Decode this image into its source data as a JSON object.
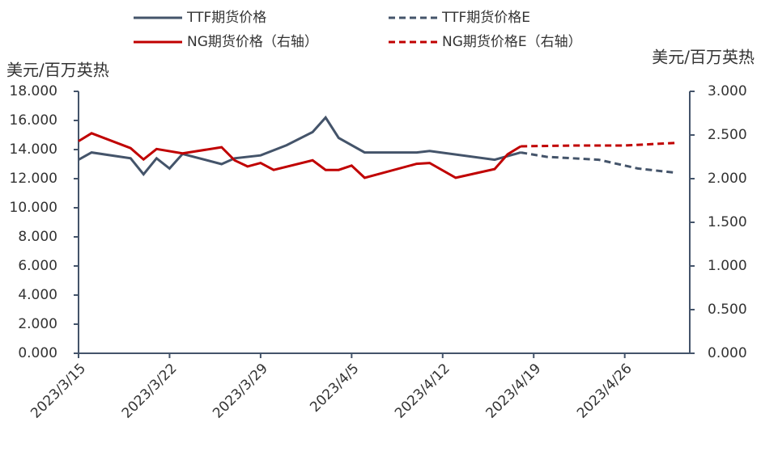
{
  "chart_data": {
    "type": "line",
    "y_label": "美元/百万英热",
    "y2_label": "美元/百万英热",
    "xlim": [
      "2023/3/15",
      "2023/5/1"
    ],
    "xticks": [
      "2023/3/15",
      "2023/3/22",
      "2023/3/29",
      "2023/4/5",
      "2023/4/12",
      "2023/4/19",
      "2023/4/26"
    ],
    "ylim": [
      0,
      18
    ],
    "yticks": [
      {
        "value": 0,
        "label": "0.000"
      },
      {
        "value": 2,
        "label": "2.000"
      },
      {
        "value": 4,
        "label": "4.000"
      },
      {
        "value": 6,
        "label": "6.000"
      },
      {
        "value": 8,
        "label": "8.000"
      },
      {
        "value": 10,
        "label": "10.000"
      },
      {
        "value": 12,
        "label": "12.000"
      },
      {
        "value": 14,
        "label": "14.000"
      },
      {
        "value": 16,
        "label": "16.000"
      },
      {
        "value": 18,
        "label": "18.000"
      }
    ],
    "y2lim": [
      0,
      3
    ],
    "y2ticks": [
      {
        "value": 0,
        "label": "0.000"
      },
      {
        "value": 0.5,
        "label": "0.500"
      },
      {
        "value": 1,
        "label": "1.000"
      },
      {
        "value": 1.5,
        "label": "1.500"
      },
      {
        "value": 2,
        "label": "2.000"
      },
      {
        "value": 2.5,
        "label": "2.500"
      },
      {
        "value": 3,
        "label": "3.000"
      }
    ],
    "legend": "top",
    "series": [
      {
        "name": "TTF期货价格",
        "color": "#44546a",
        "line_style": "solid",
        "x": [
          "2023/3/15",
          "2023/3/16",
          "2023/3/19",
          "2023/3/20",
          "2023/3/21",
          "2023/3/22",
          "2023/3/23",
          "2023/3/26",
          "2023/3/27",
          "2023/3/29",
          "2023/3/31",
          "2023/4/2",
          "2023/4/3",
          "2023/4/4",
          "2023/4/6",
          "2023/4/10",
          "2023/4/11",
          "2023/4/16",
          "2023/4/18"
        ],
        "values": [
          13.3,
          13.8,
          13.4,
          12.3,
          13.4,
          12.7,
          13.7,
          13.0,
          13.4,
          13.6,
          14.3,
          15.2,
          16.2,
          14.8,
          13.8,
          13.8,
          13.9,
          13.3,
          13.8
        ]
      },
      {
        "name": "TTF期货价格E",
        "color": "#44546a",
        "line_style": "dashed",
        "x": [
          "2023/4/18",
          "2023/4/20",
          "2023/4/24",
          "2023/4/27",
          "2023/4/30"
        ],
        "values": [
          13.8,
          13.5,
          13.3,
          12.7,
          12.4
        ]
      },
      {
        "name": "NG期货价格（右轴）",
        "color": "#c00000",
        "line_style": "solid",
        "axis": "y2",
        "x": [
          "2023/3/15",
          "2023/3/16",
          "2023/3/19",
          "2023/3/20",
          "2023/3/21",
          "2023/3/23",
          "2023/3/26",
          "2023/3/27",
          "2023/3/28",
          "2023/3/29",
          "2023/3/30",
          "2023/4/2",
          "2023/4/3",
          "2023/4/4",
          "2023/4/5",
          "2023/4/6",
          "2023/4/10",
          "2023/4/11",
          "2023/4/13",
          "2023/4/16",
          "2023/4/17",
          "2023/4/18"
        ],
        "values": [
          2.43,
          2.52,
          2.35,
          2.22,
          2.34,
          2.29,
          2.36,
          2.21,
          2.14,
          2.18,
          2.1,
          2.21,
          2.1,
          2.1,
          2.15,
          2.01,
          2.17,
          2.18,
          2.01,
          2.11,
          2.28,
          2.37
        ]
      },
      {
        "name": "NG期货价格E（右轴）",
        "color": "#c00000",
        "line_style": "dashed",
        "axis": "y2",
        "x": [
          "2023/4/18",
          "2023/4/22",
          "2023/4/26",
          "2023/4/30"
        ],
        "values": [
          2.37,
          2.38,
          2.38,
          2.41
        ]
      }
    ]
  }
}
